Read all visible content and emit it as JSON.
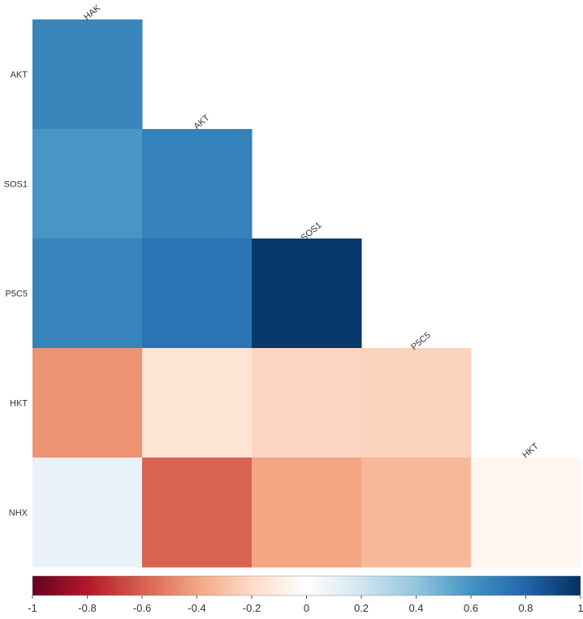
{
  "chart_data": {
    "type": "heatmap",
    "layout": "lower-triangle",
    "columns": [
      "HAK",
      "AKT",
      "SOS1",
      "P5C5",
      "HKT"
    ],
    "rows": [
      "AKT",
      "SOS1",
      "P5C5",
      "HKT",
      "NHX"
    ],
    "values": [
      [
        0.66
      ],
      [
        0.59,
        0.68
      ],
      [
        0.67,
        0.74,
        0.97
      ],
      [
        -0.45,
        -0.15,
        -0.22,
        -0.23
      ],
      [
        0.1,
        -0.59,
        -0.4,
        -0.33,
        -0.05
      ]
    ],
    "colorbar": {
      "range": [
        -1,
        1
      ],
      "ticks": [
        "-1",
        "-0.8",
        "-0.6",
        "-0.4",
        "-0.2",
        "0",
        "0.2",
        "0.4",
        "0.6",
        "0.8",
        "1"
      ],
      "colors": [
        "#67001f",
        "#b2182b",
        "#d6604d",
        "#f4a582",
        "#fddbc7",
        "#ffffff",
        "#d1e5f0",
        "#92c5de",
        "#4393c3",
        "#2166ac",
        "#053061"
      ]
    },
    "title": "",
    "xlabel": "",
    "ylabel": ""
  }
}
